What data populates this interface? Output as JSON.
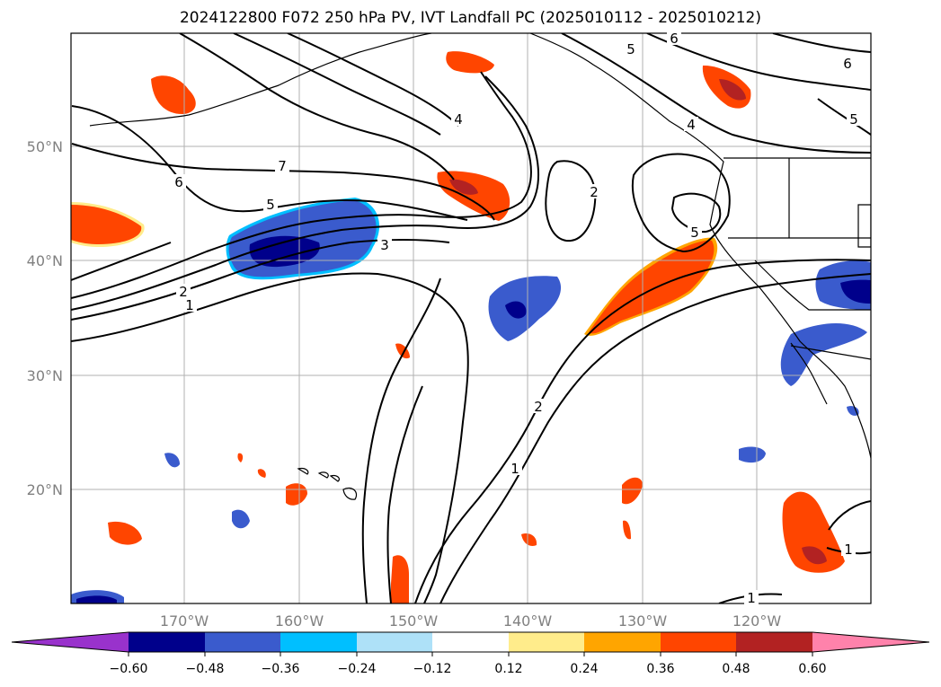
{
  "title": "2024122800 F072 250 hPa PV, IVT Landfall PC (2025010112 - 2025010212)",
  "lat_labels": [
    "50°N",
    "40°N",
    "30°N",
    "20°N"
  ],
  "lon_labels": [
    "170°W",
    "160°W",
    "150°W",
    "140°W",
    "130°W",
    "120°W"
  ],
  "contour_labels": [
    "6",
    "5",
    "4",
    "6",
    "5",
    "7",
    "6",
    "5",
    "3",
    "2",
    "1",
    "2",
    "4",
    "5",
    "2",
    "1",
    "1",
    "1"
  ],
  "colorbar": {
    "ticks": [
      "−0.60",
      "−0.48",
      "−0.36",
      "−0.24",
      "−0.12",
      "0.12",
      "0.24",
      "0.36",
      "0.48",
      "0.60"
    ],
    "colors": [
      "#9932cc",
      "#00008b",
      "#3a5bcd",
      "#00bfff",
      "#aee1f8",
      "#ffffff",
      "#ffec8b",
      "#ffa500",
      "#ff4500",
      "#b22222",
      "#ff82ab"
    ]
  }
}
